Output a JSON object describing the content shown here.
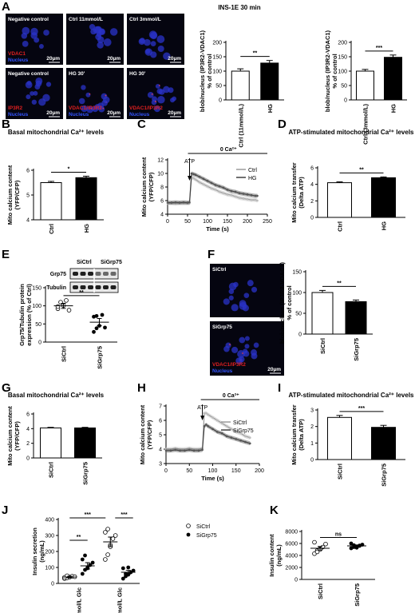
{
  "figure_title": "INS-1E 30 min",
  "panel_letters": [
    "A",
    "B",
    "C",
    "D",
    "E",
    "F",
    "G",
    "H",
    "I",
    "J",
    "K"
  ],
  "images": {
    "A": [
      {
        "title": "Negative control",
        "lines": [
          {
            "text": "VDAC1",
            "color": "#e02020"
          },
          {
            "text": "Nucleus",
            "color": "#3355ff"
          }
        ],
        "scale": "20µm"
      },
      {
        "title": "Ctrl 11mmol/L",
        "lines": [],
        "scale": "20µm"
      },
      {
        "title": "Ctrl 3mmol/L",
        "lines": [],
        "scale": "20µm"
      },
      {
        "title": "Negative control",
        "lines": [
          {
            "text": "IP3R2",
            "color": "#e02020"
          },
          {
            "text": "Nucleus",
            "color": "#3355ff"
          }
        ],
        "scale": "20µm"
      },
      {
        "title": "HG 30'",
        "lines": [
          {
            "text": "VDAC1/IP3R2",
            "color": "#e02020"
          },
          {
            "text": "Nucleus",
            "color": "#3355ff"
          }
        ],
        "scale": "20µm"
      },
      {
        "title": "HG 30'",
        "lines": [
          {
            "text": "VDAC1/IP3R2",
            "color": "#e02020"
          },
          {
            "text": "Nucleus",
            "color": "#3355ff"
          }
        ],
        "scale": "20µm"
      }
    ],
    "F": [
      {
        "title": "SiCtrl",
        "lines": [],
        "scale": ""
      },
      {
        "title": "SiGrp75",
        "lines": [
          {
            "text": "VDAC1/IP3R2",
            "color": "#e02020"
          },
          {
            "text": "Nucleus",
            "color": "#3355ff"
          }
        ],
        "scale": "20µm"
      }
    ]
  },
  "western": {
    "lanes": [
      "SiCtrl",
      "SiGrp75"
    ],
    "rows": [
      "Grp75",
      "Tubulin"
    ]
  },
  "chart_data": [
    {
      "panel": "A1",
      "type": "bar",
      "title": "",
      "categories": [
        "Ctrl (11mmol/L)",
        "HG"
      ],
      "values": [
        100,
        128
      ],
      "errors": [
        8,
        9
      ],
      "ylabel": "blob/nucleus (IP3R2-VDAC1)\n% of control",
      "ylim": [
        0,
        200
      ],
      "yticks": [
        0,
        50,
        100,
        150,
        200
      ],
      "fills": [
        "#ffffff",
        "#000000"
      ],
      "sig": [
        {
          "from": 0,
          "to": 1,
          "label": "**"
        }
      ]
    },
    {
      "panel": "A2",
      "type": "bar",
      "title": "",
      "categories": [
        "Ctrl (3mmol/L)",
        "HG"
      ],
      "values": [
        100,
        148
      ],
      "errors": [
        6,
        8
      ],
      "ylabel": "blob/nucleus (IP3R2-VDAC1)\n% of control",
      "ylim": [
        0,
        200
      ],
      "yticks": [
        0,
        50,
        100,
        150,
        200
      ],
      "fills": [
        "#ffffff",
        "#000000"
      ],
      "sig": [
        {
          "from": 0,
          "to": 1,
          "label": "***"
        }
      ]
    },
    {
      "panel": "B",
      "type": "bar",
      "title": "Basal mitochondrial Ca²⁺ levels",
      "categories": [
        "Ctrl",
        "HG"
      ],
      "values": [
        5.5,
        5.7
      ],
      "errors": [
        0.05,
        0.06
      ],
      "ylabel": "Mito calcium content\n(YFP/CFP)",
      "ylim": [
        4,
        6
      ],
      "yticks": [
        4,
        5,
        6
      ],
      "fills": [
        "#ffffff",
        "#000000"
      ],
      "sig": [
        {
          "from": 0,
          "to": 1,
          "label": "*"
        }
      ]
    },
    {
      "panel": "C",
      "type": "line",
      "title": "",
      "xlabel": "Time (s)",
      "ylabel": "Mito calcium content\n(YFP/CFP)",
      "xlim": [
        0,
        250
      ],
      "xticks": [
        0,
        50,
        100,
        150,
        200,
        250
      ],
      "ylim": [
        4,
        12
      ],
      "yticks": [
        4,
        6,
        8,
        10,
        12
      ],
      "annotation": "0 Ca²⁺",
      "arrow_label": "ATP",
      "arrow_x": 55,
      "series": [
        {
          "name": "Ctrl",
          "color": "#c8c8c8",
          "x": [
            0,
            10,
            20,
            30,
            40,
            50,
            55,
            60,
            65,
            70,
            80,
            90,
            100,
            110,
            120,
            130,
            140,
            150,
            160,
            170,
            180,
            190,
            200,
            210,
            220,
            225
          ],
          "y": [
            5.6,
            5.6,
            5.55,
            5.6,
            5.6,
            5.6,
            5.6,
            9.4,
            9.3,
            9.1,
            8.7,
            8.4,
            8.1,
            7.8,
            7.6,
            7.3,
            7.1,
            6.9,
            6.8,
            6.6,
            6.4,
            6.3,
            6.2,
            6.1,
            6.1,
            6.0
          ]
        },
        {
          "name": "HG",
          "color": "#707070",
          "x": [
            0,
            10,
            20,
            30,
            40,
            50,
            55,
            60,
            65,
            70,
            80,
            90,
            100,
            110,
            120,
            130,
            140,
            150,
            160,
            170,
            180,
            190,
            200,
            210,
            220,
            225
          ],
          "y": [
            5.7,
            5.7,
            5.75,
            5.7,
            5.75,
            5.7,
            5.75,
            10.0,
            9.9,
            9.8,
            9.5,
            9.2,
            8.9,
            8.6,
            8.3,
            8.1,
            7.9,
            7.6,
            7.4,
            7.3,
            7.1,
            7.0,
            6.9,
            6.8,
            6.7,
            6.7
          ]
        }
      ]
    },
    {
      "panel": "D",
      "type": "bar",
      "title": "ATP-stimulated  mitochondrial Ca²⁺ levels",
      "categories": [
        "Ctrl",
        "HG"
      ],
      "values": [
        4.2,
        4.8
      ],
      "errors": [
        0.1,
        0.1
      ],
      "ylabel": "Mito calcium transfer\n(Delta ATP)",
      "ylim": [
        0,
        6
      ],
      "yticks": [
        0,
        2,
        4,
        6
      ],
      "fills": [
        "#ffffff",
        "#000000"
      ],
      "sig": [
        {
          "from": 0,
          "to": 1,
          "label": "**"
        }
      ]
    },
    {
      "panel": "E",
      "type": "scatter",
      "title": "",
      "categories": [
        "SiCtrl",
        "SiGrp75"
      ],
      "ylabel": "Grp75/Tubulin protein\nexpression (% of Ctrl)",
      "ylim": [
        0,
        150
      ],
      "yticks": [
        0,
        50,
        100,
        150
      ],
      "means": [
        100,
        55
      ],
      "sems": [
        7,
        10
      ],
      "points": [
        [
          92,
          110,
          101,
          115,
          88,
          98
        ],
        [
          28,
          72,
          45,
          75,
          40,
          70,
          38
        ]
      ],
      "markers": [
        "open",
        "filled"
      ],
      "sig": [
        {
          "from": 0,
          "to": 1,
          "label": "**"
        }
      ]
    },
    {
      "panel": "F",
      "type": "bar",
      "title": "",
      "categories": [
        "SiCtrl",
        "SiGrp75"
      ],
      "values": [
        100,
        78
      ],
      "errors": [
        5,
        4
      ],
      "ylabel": "blob/nucleus (IP3R2-VDAC1)\n% of control",
      "ylim": [
        0,
        150
      ],
      "yticks": [
        0,
        50,
        100,
        150
      ],
      "fills": [
        "#ffffff",
        "#000000"
      ],
      "sig": [
        {
          "from": 0,
          "to": 1,
          "label": "**"
        }
      ]
    },
    {
      "panel": "G",
      "type": "bar",
      "title": "Basal mitochondrial Ca²⁺ levels",
      "categories": [
        "SiCtrl",
        "SiGrp75"
      ],
      "values": [
        4.1,
        4.1
      ],
      "errors": [
        0.08,
        0.08
      ],
      "ylabel": "Mito calcium content\n(YFP/CFP)",
      "ylim": [
        0,
        6
      ],
      "yticks": [
        0,
        2,
        4,
        6
      ],
      "fills": [
        "#ffffff",
        "#000000"
      ],
      "sig": []
    },
    {
      "panel": "H",
      "type": "line",
      "title": "",
      "xlabel": "Time (s)",
      "ylabel": "Mito calcium content\n(YFP/CFP)",
      "xlim": [
        0,
        200
      ],
      "xticks": [
        0,
        50,
        100,
        150,
        200
      ],
      "ylim": [
        3,
        7
      ],
      "yticks": [
        3,
        4,
        5,
        6,
        7
      ],
      "annotation": "0 Ca²⁺",
      "arrow_label": "ATP",
      "arrow_x": 78,
      "series": [
        {
          "name": "SiCtrl",
          "color": "#c8c8c8",
          "x": [
            0,
            10,
            20,
            30,
            40,
            50,
            60,
            70,
            78,
            82,
            86,
            90,
            100,
            110,
            120,
            130,
            140,
            150,
            160,
            170,
            180
          ],
          "y": [
            4.0,
            4.0,
            4.05,
            4.0,
            4.0,
            4.05,
            4.0,
            4.0,
            4.05,
            6.5,
            6.5,
            6.4,
            6.2,
            6.0,
            5.8,
            5.6,
            5.4,
            5.2,
            5.1,
            4.9,
            4.8
          ]
        },
        {
          "name": "SiGrp75",
          "color": "#707070",
          "x": [
            0,
            10,
            20,
            30,
            40,
            50,
            60,
            70,
            78,
            82,
            86,
            90,
            100,
            110,
            120,
            130,
            140,
            150,
            160,
            170,
            180
          ],
          "y": [
            3.9,
            3.9,
            3.95,
            3.9,
            3.9,
            3.95,
            3.9,
            3.9,
            3.95,
            5.6,
            5.7,
            5.6,
            5.4,
            5.2,
            5.1,
            4.9,
            4.8,
            4.7,
            4.6,
            4.5,
            4.4
          ]
        }
      ]
    },
    {
      "panel": "I",
      "type": "bar",
      "title": "ATP-stimulated  mitochondrial Ca²⁺ levels",
      "categories": [
        "SiCtrl",
        "SiGrp75"
      ],
      "values": [
        2.55,
        1.95
      ],
      "errors": [
        0.12,
        0.12
      ],
      "ylabel": "Mito calcium transfer\n(Delta ATP)",
      "ylim": [
        0,
        3
      ],
      "yticks": [
        0,
        1,
        2,
        3
      ],
      "fills": [
        "#ffffff",
        "#000000"
      ],
      "sig": [
        {
          "from": 0,
          "to": 1,
          "label": "***"
        }
      ]
    },
    {
      "panel": "J",
      "type": "scatter",
      "title": "",
      "categories": [
        "5.5mmol/L Glc",
        "22.5mmol/L Glc"
      ],
      "ylabel": "Insulin secretion\n(ng/mL)",
      "ylim": [
        0,
        400
      ],
      "yticks": [
        0,
        100,
        200,
        300,
        400
      ],
      "legend": [
        {
          "name": "SiCtrl",
          "marker": "open"
        },
        {
          "name": "SiGrp75",
          "marker": "filled"
        }
      ],
      "groups": [
        {
          "cat": 0,
          "marker": "open",
          "mean": 40,
          "sem": 5,
          "points": [
            30,
            35,
            40,
            45,
            42,
            38,
            48
          ]
        },
        {
          "cat": 0,
          "marker": "filled",
          "mean": 110,
          "sem": 20,
          "points": [
            60,
            85,
            100,
            115,
            130,
            150,
            175,
            95
          ]
        },
        {
          "cat": 1,
          "marker": "open",
          "mean": 260,
          "sem": 30,
          "points": [
            150,
            180,
            240,
            280,
            300,
            320,
            340,
            230
          ]
        },
        {
          "cat": 1,
          "marker": "filled",
          "mean": 70,
          "sem": 12,
          "points": [
            30,
            45,
            55,
            70,
            80,
            95,
            60,
            100
          ]
        }
      ],
      "sig": [
        {
          "label": "**",
          "y": 270,
          "span": "cat0"
        },
        {
          "label": "***",
          "y": 395,
          "span": "between"
        },
        {
          "label": "***",
          "y": 390,
          "span": "cat1"
        }
      ]
    },
    {
      "panel": "K",
      "type": "scatter",
      "title": "",
      "categories": [
        "SiCtrl",
        "SiGrp75"
      ],
      "ylabel": "Insulin content\n(ng/mL)",
      "ylim": [
        0,
        8000
      ],
      "yticks": [
        0,
        2000,
        4000,
        6000,
        8000
      ],
      "means": [
        5200,
        5600
      ],
      "sems": [
        300,
        150
      ],
      "points": [
        [
          4300,
          4800,
          5100,
          5400,
          5900,
          6200,
          4600,
          5000
        ],
        [
          5200,
          5400,
          5500,
          5600,
          5800,
          6000,
          5700,
          5300,
          5650
        ]
      ],
      "markers": [
        "open",
        "filled"
      ],
      "sig": [
        {
          "from": 0,
          "to": 1,
          "label": "ns"
        }
      ]
    }
  ]
}
